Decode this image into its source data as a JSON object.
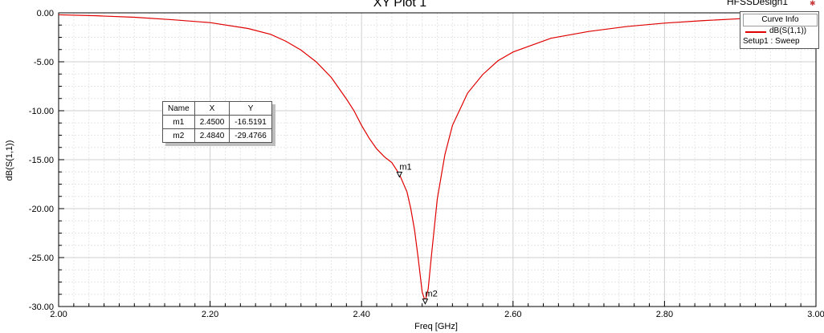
{
  "window": {
    "design_name": "HFSSDesign1",
    "corner_icon": "ansys-logo-icon"
  },
  "chart_data": {
    "type": "line",
    "title": "XY Plot 1",
    "xlabel": "Freq [GHz]",
    "ylabel": "dB(S(1,1))",
    "xlim": [
      2.0,
      3.0
    ],
    "ylim": [
      -30.0,
      0.0
    ],
    "grid": true,
    "x_ticks": [
      "2.00",
      "2.20",
      "2.40",
      "2.60",
      "2.80",
      "3.00"
    ],
    "y_ticks": [
      "0.00",
      "-5.00",
      "-10.00",
      "-15.00",
      "-20.00",
      "-25.00",
      "-30.00"
    ],
    "series": [
      {
        "name": "dB(S(1,1))",
        "color": "#e00000",
        "x": [
          2.0,
          2.05,
          2.1,
          2.15,
          2.2,
          2.25,
          2.28,
          2.3,
          2.32,
          2.34,
          2.36,
          2.38,
          2.39,
          2.4,
          2.41,
          2.42,
          2.43,
          2.44,
          2.45,
          2.46,
          2.465,
          2.47,
          2.475,
          2.48,
          2.484,
          2.488,
          2.492,
          2.5,
          2.51,
          2.52,
          2.54,
          2.56,
          2.58,
          2.6,
          2.65,
          2.7,
          2.75,
          2.8,
          2.85,
          2.9,
          2.95,
          3.0
        ],
        "y": [
          -0.2,
          -0.3,
          -0.45,
          -0.7,
          -1.0,
          -1.6,
          -2.2,
          -2.9,
          -3.8,
          -5.0,
          -6.6,
          -8.8,
          -10.0,
          -11.5,
          -12.8,
          -13.9,
          -14.7,
          -15.3,
          -16.5,
          -18.3,
          -20.0,
          -22.2,
          -25.2,
          -28.5,
          -29.48,
          -28.2,
          -25.0,
          -19.0,
          -14.5,
          -11.5,
          -8.2,
          -6.3,
          -4.9,
          -4.0,
          -2.6,
          -1.9,
          -1.4,
          -1.05,
          -0.8,
          -0.6,
          -0.45,
          -0.35
        ]
      }
    ],
    "markers": [
      {
        "name": "m1",
        "x": 2.45,
        "y": -16.5191
      },
      {
        "name": "m2",
        "x": 2.484,
        "y": -29.4766
      }
    ],
    "marker_table": {
      "headers": [
        "Name",
        "X",
        "Y"
      ],
      "rows": [
        [
          "m1",
          "2.4500",
          "-16.5191"
        ],
        [
          "m2",
          "2.4840",
          "-29.4766"
        ]
      ]
    },
    "legend": {
      "title": "Curve Info",
      "entry": "dB(S(1,1))",
      "sub": "Setup1 : Sweep"
    }
  }
}
